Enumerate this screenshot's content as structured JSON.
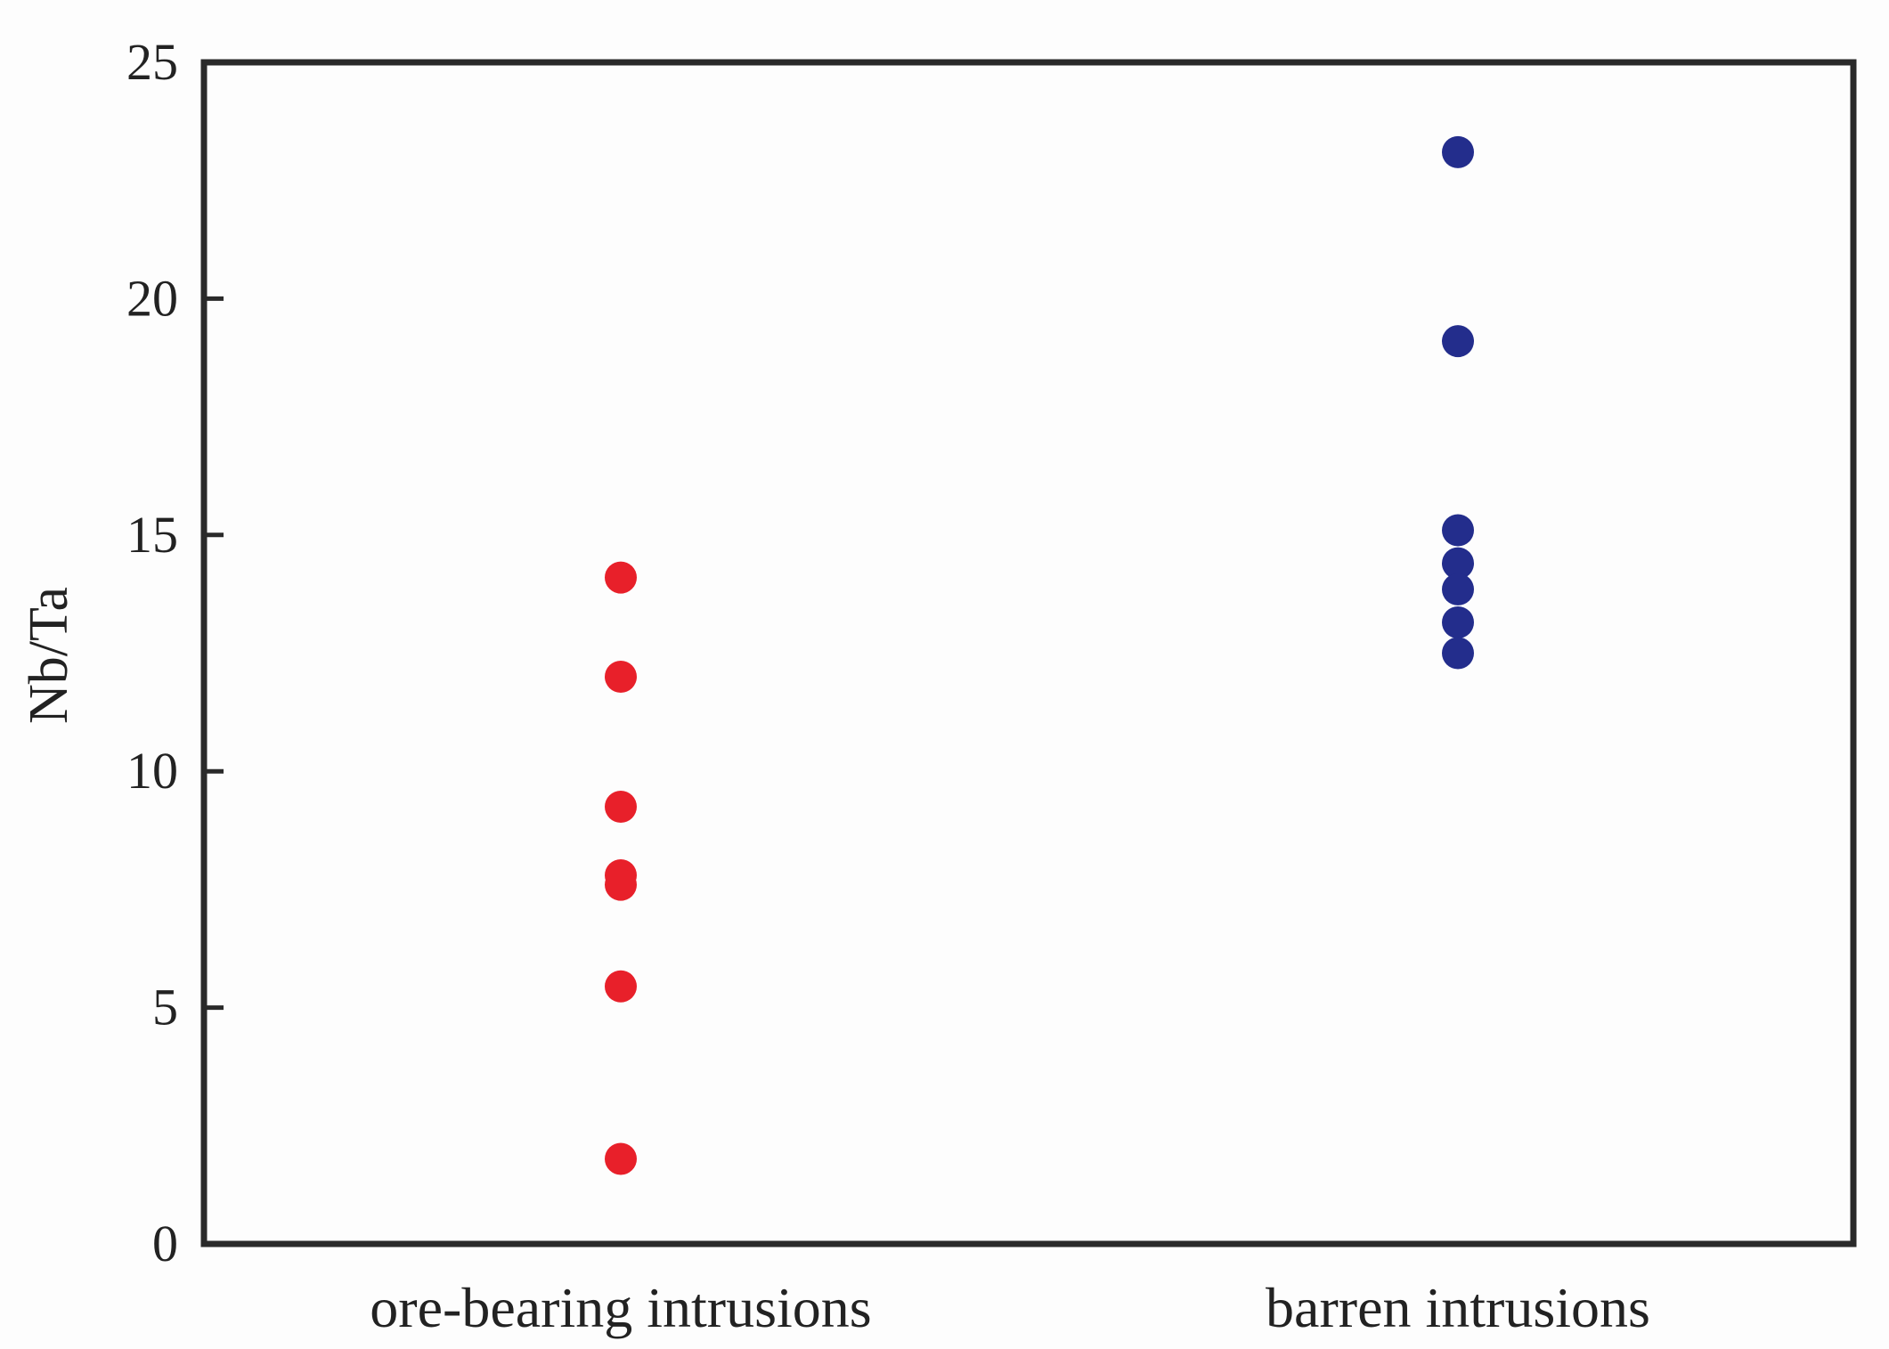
{
  "chart_data": {
    "type": "scatter",
    "title": "",
    "xlabel": "",
    "ylabel": "Nb/Ta",
    "ylim": [
      0,
      25
    ],
    "yticks": [
      "0",
      "5",
      "10",
      "15",
      "20",
      "25"
    ],
    "categories": [
      "ore-bearing intrusions",
      "barren intrusions"
    ],
    "grid": false,
    "legend": "none",
    "series": [
      {
        "category": "ore-bearing intrusions",
        "color": "#e8202a",
        "values": [
          14.1,
          12.0,
          9.25,
          7.8,
          7.6,
          5.45,
          1.8
        ]
      },
      {
        "category": "barren intrusions",
        "color": "#232d8c",
        "values": [
          23.1,
          19.1,
          15.1,
          14.4,
          13.85,
          13.15,
          12.5
        ]
      }
    ]
  }
}
